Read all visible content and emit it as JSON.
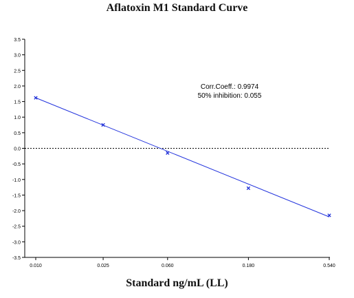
{
  "chart_data": {
    "type": "line",
    "title": "Aflatoxin M1 Standard Curve",
    "xlabel": "Standard ng/mL (LL)",
    "ylabel": "",
    "x_scale": "log",
    "categories": [
      "0.010",
      "0.025",
      "0.060",
      "0.180",
      "0.540"
    ],
    "ylim": [
      -3.5,
      3.5
    ],
    "y_ticks": [
      "3.5",
      "3.0",
      "2.5",
      "2.0",
      "1.5",
      "1.0",
      "0.5",
      "0.0",
      "-0.5",
      "-1.0",
      "-1.5",
      "-2.0",
      "-2.5",
      "-3.0",
      "-3.5"
    ],
    "series": [
      {
        "kind": "points",
        "x": [
          0.01,
          0.025,
          0.06,
          0.18,
          0.54
        ],
        "y": [
          1.62,
          0.75,
          -0.15,
          -1.28,
          -2.15
        ]
      },
      {
        "kind": "fit",
        "x": [
          0.01,
          0.54
        ],
        "y": [
          1.62,
          -2.2
        ]
      }
    ],
    "zero_line": true,
    "annotations": {
      "corr": "Corr.Coeff.: 0.9974",
      "inhibition": "50% inhibition: 0.055"
    },
    "colors": {
      "series": "#1a2bd6",
      "fit": "#2233dd",
      "axis": "#000000"
    }
  }
}
